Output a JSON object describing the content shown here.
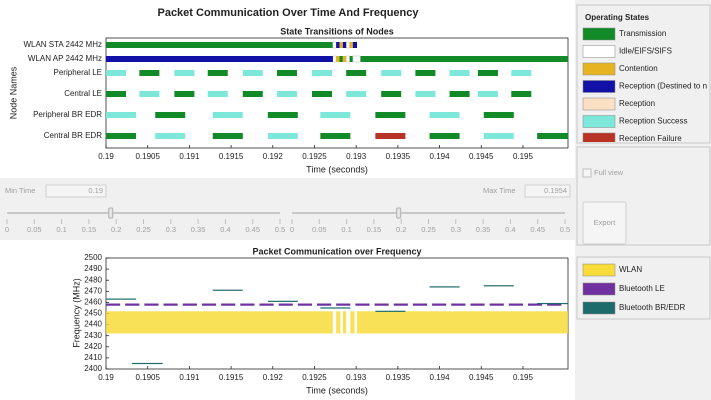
{
  "title": "Packet Communication Over Time And Frequency",
  "chart_data": [
    {
      "type": "timeline",
      "title": "State Transitions of Nodes",
      "xlabel": "Time (seconds)",
      "ylabel": "Node Names",
      "legend_title": "Operating States",
      "categories": [
        "WLAN STA 2442 MHz",
        "WLAN AP 2442 MHz",
        "Peripheral LE",
        "Central LE",
        "Peripheral BR EDR",
        "Central BR EDR"
      ],
      "xlim": [
        0.19,
        0.19554
      ],
      "xticks": [
        0.19,
        0.1905,
        0.191,
        0.1915,
        0.192,
        0.1925,
        0.193,
        0.1935,
        0.194,
        0.1945,
        0.195
      ],
      "series": [
        {
          "name": "Transmission",
          "color": "#138a28"
        },
        {
          "name": "Idle/EIFS/SIFS",
          "color": "#ffffff"
        },
        {
          "name": "Contention",
          "color": "#e6b422"
        },
        {
          "name": "Reception (Destined to n",
          "color": "#1111a8"
        },
        {
          "name": "Reception",
          "color": "#fbe0c4"
        },
        {
          "name": "Reception Success",
          "color": "#7de8da"
        },
        {
          "name": "Reception Failure",
          "color": "#b83226"
        }
      ],
      "segments": [
        [
          [
            [
              0.19,
              0.19272
            ]
          ],
          [
            [
              0.19272,
              0.19276
            ],
            [
              0.19288,
              0.19292
            ]
          ],
          [
            [
              0.1928,
              0.19284
            ],
            [
              0.19292,
              0.19296
            ]
          ],
          [
            [
              0.19276,
              0.1928
            ],
            [
              0.19284,
              0.19288
            ],
            [
              0.19296,
              0.19301
            ]
          ],
          [],
          [],
          []
        ],
        [
          [
            [
              0.1928,
              0.19284
            ],
            [
              0.19292,
              0.19296
            ],
            [
              0.19305,
              0.19554
            ]
          ],
          [
            [
              0.19272,
              0.19276
            ],
            [
              0.19288,
              0.19292
            ],
            [
              0.19296,
              0.19305
            ]
          ],
          [
            [
              0.19276,
              0.1928
            ],
            [
              0.19284,
              0.19288
            ]
          ],
          [
            [
              0.19,
              0.19272
            ]
          ],
          [],
          [],
          []
        ],
        [
          [
            [
              0.1904,
              0.19064
            ],
            [
              0.19122,
              0.19146
            ],
            [
              0.19205,
              0.19229
            ],
            [
              0.19288,
              0.19312
            ],
            [
              0.19371,
              0.19395
            ],
            [
              0.19446,
              0.1947
            ]
          ],
          [],
          [],
          [],
          [],
          [
            [
              0.19,
              0.19024
            ],
            [
              0.19082,
              0.19106
            ],
            [
              0.19164,
              0.19188
            ],
            [
              0.19247,
              0.19271
            ],
            [
              0.1933,
              0.19354
            ],
            [
              0.19412,
              0.19436
            ],
            [
              0.19486,
              0.1951
            ]
          ],
          []
        ],
        [
          [
            [
              0.19,
              0.19024
            ],
            [
              0.19082,
              0.19106
            ],
            [
              0.19164,
              0.19188
            ],
            [
              0.19247,
              0.19271
            ],
            [
              0.1933,
              0.19354
            ],
            [
              0.19412,
              0.19436
            ],
            [
              0.19486,
              0.1951
            ]
          ],
          [],
          [],
          [],
          [],
          [
            [
              0.1904,
              0.19064
            ],
            [
              0.19122,
              0.19146
            ],
            [
              0.19205,
              0.19229
            ],
            [
              0.19288,
              0.19312
            ],
            [
              0.19371,
              0.19395
            ],
            [
              0.19446,
              0.1947
            ]
          ],
          []
        ],
        [
          [
            [
              0.19059,
              0.19095
            ],
            [
              0.19194,
              0.1923
            ],
            [
              0.19323,
              0.19359
            ],
            [
              0.19453,
              0.19489
            ]
          ],
          [],
          [],
          [],
          [],
          [
            [
              0.19,
              0.19036
            ],
            [
              0.19128,
              0.19164
            ],
            [
              0.19257,
              0.19293
            ],
            [
              0.19388,
              0.19424
            ]
          ],
          []
        ],
        [
          [
            [
              0.19,
              0.19036
            ],
            [
              0.19128,
              0.19164
            ],
            [
              0.19257,
              0.19293
            ],
            [
              0.19388,
              0.19424
            ],
            [
              0.19517,
              0.19554
            ]
          ],
          [],
          [],
          [],
          [],
          [
            [
              0.19059,
              0.19095
            ],
            [
              0.19194,
              0.1923
            ],
            [
              0.19453,
              0.19489
            ]
          ],
          [
            [
              0.19323,
              0.19359
            ]
          ]
        ]
      ]
    },
    {
      "type": "spectrum",
      "title": "Packet Communication over Frequency",
      "xlabel": "Time (seconds)",
      "ylabel": "Frequency (MHz)",
      "xlim": [
        0.19,
        0.19554
      ],
      "ylim": [
        2400,
        2500
      ],
      "xticks": [
        0.19,
        0.1905,
        0.191,
        0.1915,
        0.192,
        0.1925,
        0.193,
        0.1935,
        0.194,
        0.1945,
        0.195
      ],
      "yticks": [
        2400,
        2410,
        2420,
        2430,
        2440,
        2450,
        2460,
        2470,
        2480,
        2490,
        2500
      ],
      "series": [
        {
          "name": "WLAN",
          "color": "#f8dc3a",
          "values": [
            [
              0.19,
              0.19272,
              2432,
              2452
            ],
            [
              0.19276,
              0.19281,
              2432,
              2452
            ],
            [
              0.19284,
              0.19288,
              2432,
              2452
            ],
            [
              0.19293,
              0.19298,
              2432,
              2452
            ],
            [
              0.19301,
              0.19554,
              2432,
              2452
            ]
          ]
        },
        {
          "name": "Bluetooth LE",
          "color": "#7030a0",
          "values": [
            [
              0.19,
              0.19017,
              2457,
              2459
            ],
            [
              0.19023,
              0.1904,
              2457,
              2459
            ],
            [
              0.19046,
              0.19063,
              2457,
              2459
            ],
            [
              0.19069,
              0.19086,
              2457,
              2459
            ],
            [
              0.19092,
              0.19109,
              2457,
              2459
            ],
            [
              0.19115,
              0.19132,
              2457,
              2459
            ],
            [
              0.19138,
              0.19155,
              2457,
              2459
            ],
            [
              0.19161,
              0.19178,
              2457,
              2459
            ],
            [
              0.19184,
              0.19201,
              2457,
              2459
            ],
            [
              0.19207,
              0.19224,
              2457,
              2459
            ],
            [
              0.1923,
              0.19247,
              2457,
              2459
            ],
            [
              0.19253,
              0.1927,
              2457,
              2459
            ],
            [
              0.19276,
              0.19293,
              2457,
              2459
            ],
            [
              0.19299,
              0.19316,
              2457,
              2459
            ],
            [
              0.19322,
              0.19339,
              2457,
              2459
            ],
            [
              0.19345,
              0.19362,
              2457,
              2459
            ],
            [
              0.19368,
              0.19385,
              2457,
              2459
            ],
            [
              0.19391,
              0.19408,
              2457,
              2459
            ],
            [
              0.19414,
              0.19431,
              2457,
              2459
            ],
            [
              0.19437,
              0.19454,
              2457,
              2459
            ],
            [
              0.1946,
              0.19477,
              2457,
              2459
            ],
            [
              0.19483,
              0.195,
              2457,
              2459
            ],
            [
              0.19506,
              0.19523,
              2457,
              2459
            ],
            [
              0.19529,
              0.19546,
              2457,
              2459
            ]
          ]
        },
        {
          "name": "Bluetooth BR/EDR",
          "color": "#1e6b6b",
          "values": [
            [
              0.19,
              0.19036,
              2462.5,
              2463.5
            ],
            [
              0.19031,
              0.19068,
              2404.5,
              2405.5
            ],
            [
              0.19128,
              0.19164,
              2470.5,
              2471.5
            ],
            [
              0.19194,
              0.1923,
              2460.5,
              2461.5
            ],
            [
              0.19257,
              0.19293,
              2454.5,
              2455.5
            ],
            [
              0.19323,
              0.19359,
              2451.5,
              2452.5
            ],
            [
              0.19388,
              0.19424,
              2473.5,
              2474.5
            ],
            [
              0.19453,
              0.19489,
              2474.5,
              2475.5
            ],
            [
              0.19517,
              0.19554,
              2458.5,
              2459.5
            ]
          ]
        }
      ]
    }
  ],
  "controls": {
    "min_time": {
      "label": "Min Time",
      "value": 0.19
    },
    "max_time": {
      "label": "Max Time",
      "value": 0.1954
    },
    "slider_range": [
      0,
      0.5
    ],
    "slider_ticks": [
      0,
      0.05,
      0.1,
      0.15,
      0.2,
      0.25,
      0.3,
      0.35,
      0.4,
      0.45,
      0.5
    ],
    "full_view": "Full view",
    "export": "Export"
  }
}
